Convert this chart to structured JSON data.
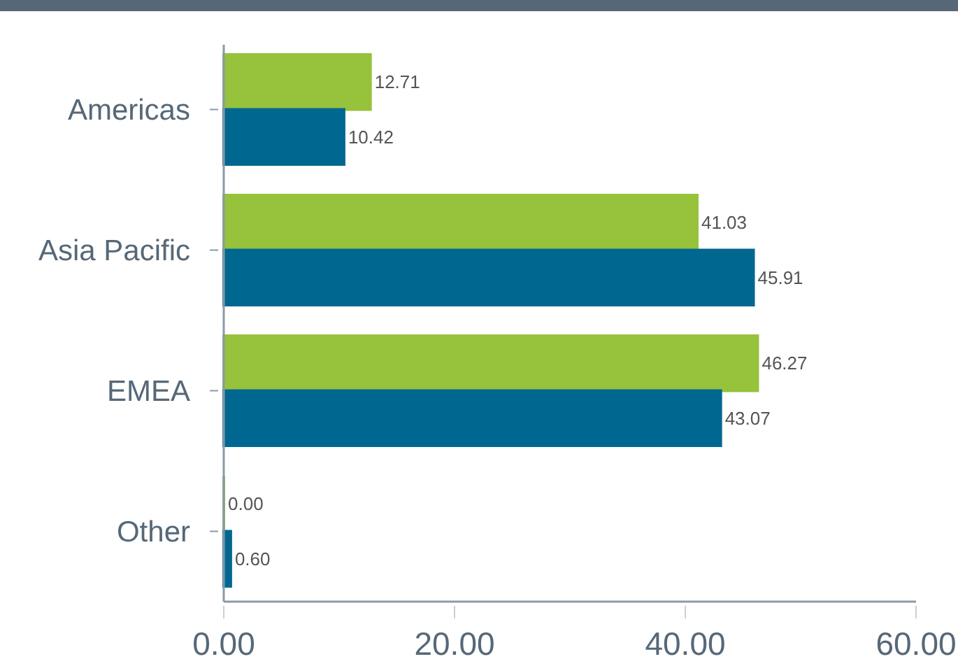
{
  "chart_data": {
    "type": "bar",
    "orientation": "horizontal",
    "categories": [
      "Americas",
      "Asia Pacific",
      "EMEA",
      "Other"
    ],
    "series": [
      {
        "color": "#97c23c",
        "values": [
          12.71,
          41.03,
          46.27,
          0
        ],
        "value_labels": [
          "12.71",
          "41.03",
          "46.27",
          "0.00"
        ]
      },
      {
        "color": "#006890",
        "values": [
          10.42,
          45.91,
          43.07,
          0.6
        ],
        "value_labels": [
          "10.42",
          "45.91",
          "43.07",
          "0.60"
        ]
      }
    ],
    "xlim": [
      0,
      60
    ],
    "xticks": [
      {
        "value": 0,
        "label": "0.00"
      },
      {
        "value": 20,
        "label": "20.00"
      },
      {
        "value": 40,
        "label": "40.00"
      },
      {
        "value": 60,
        "label": "60.00"
      }
    ],
    "grid": false
  }
}
